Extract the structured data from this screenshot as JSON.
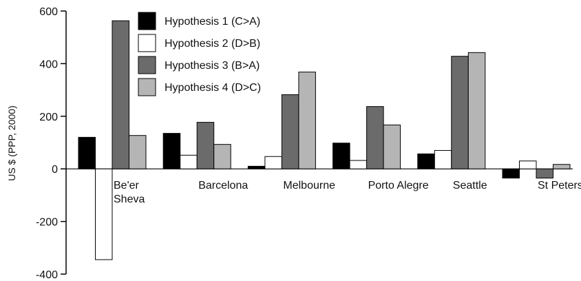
{
  "chart_data": {
    "type": "bar",
    "title": "",
    "xlabel": "",
    "ylabel": "US $ (PPP, 2000)",
    "ylim": [
      -400,
      600
    ],
    "yticks": [
      600,
      400,
      200,
      0,
      -200,
      -400
    ],
    "grid": false,
    "legend_position": "top-left-inside",
    "categories": [
      "Be'er Sheva",
      "Barcelona",
      "Melbourne",
      "Porto Alegre",
      "Seattle",
      "St Petersburg"
    ],
    "category_label_lines": [
      [
        "Be'er",
        "Sheva"
      ],
      [
        "Barcelona"
      ],
      [
        "Melbourne"
      ],
      [
        "Porto Alegre"
      ],
      [
        "Seattle"
      ],
      [
        "St Petersburg"
      ]
    ],
    "series": [
      {
        "name": "Hypothesis 1 (C>A)",
        "color": "#000000",
        "values": [
          120,
          135,
          10,
          98,
          57,
          -35
        ]
      },
      {
        "name": "Hypothesis 2 (D>B)",
        "color": "#ffffff",
        "values": [
          -345,
          52,
          47,
          32,
          70,
          30
        ]
      },
      {
        "name": "Hypothesis 3 (B>A)",
        "color": "#6b6b6b",
        "values": [
          563,
          177,
          282,
          237,
          428,
          -35
        ]
      },
      {
        "name": "Hypothesis 4 (D>C)",
        "color": "#b5b5b5",
        "values": [
          127,
          93,
          368,
          167,
          442,
          17
        ]
      }
    ]
  }
}
